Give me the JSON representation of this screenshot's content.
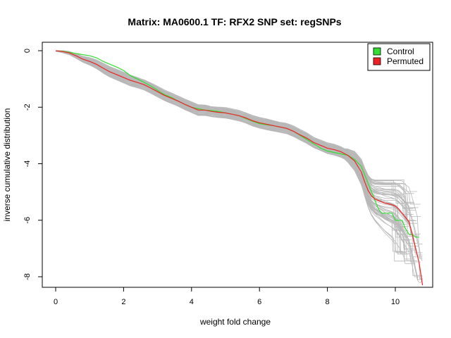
{
  "chart_data": {
    "type": "line",
    "title": "Matrix: MA0600.1 TF: RFX2 SNP set: regSNPs",
    "xlabel": "weight fold change",
    "ylabel": "inverse cumulative distribution",
    "xlim": [
      0,
      10.8
    ],
    "ylim": [
      -8,
      0
    ],
    "xticks": [
      0,
      2,
      4,
      6,
      8,
      10
    ],
    "yticks": [
      0,
      -2,
      -4,
      -6,
      -8
    ],
    "legend": {
      "position": "top-right",
      "entries": [
        {
          "label": "Control",
          "color": "#33dd33"
        },
        {
          "label": "Permuted",
          "color": "#ee2222"
        }
      ]
    },
    "series": [
      {
        "name": "Control",
        "color": "#33dd33",
        "x": [
          0.0,
          0.2,
          0.4,
          0.6,
          0.8,
          1.0,
          1.2,
          1.4,
          1.6,
          1.8,
          2.0,
          2.2,
          2.4,
          2.6,
          2.8,
          3.0,
          3.2,
          3.4,
          3.6,
          3.8,
          4.0,
          4.2,
          4.4,
          4.6,
          4.8,
          5.0,
          5.2,
          5.4,
          5.6,
          5.8,
          6.0,
          6.2,
          6.4,
          6.6,
          6.8,
          7.0,
          7.2,
          7.4,
          7.6,
          7.8,
          8.0,
          8.2,
          8.4,
          8.6,
          8.8,
          9.0,
          9.1,
          9.2,
          9.3,
          9.4,
          9.5,
          9.6,
          9.7,
          9.8,
          9.9,
          10.0,
          10.1,
          10.2,
          10.3,
          10.4,
          10.5,
          10.6,
          10.7
        ],
        "y": [
          0.0,
          -0.02,
          -0.06,
          -0.1,
          -0.14,
          -0.18,
          -0.25,
          -0.38,
          -0.48,
          -0.58,
          -0.7,
          -0.88,
          -1.0,
          -1.12,
          -1.25,
          -1.4,
          -1.55,
          -1.65,
          -1.78,
          -1.9,
          -2.0,
          -2.05,
          -2.1,
          -2.12,
          -2.15,
          -2.2,
          -2.25,
          -2.3,
          -2.4,
          -2.5,
          -2.58,
          -2.62,
          -2.65,
          -2.7,
          -2.75,
          -2.85,
          -3.0,
          -3.15,
          -3.3,
          -3.45,
          -3.55,
          -3.6,
          -3.65,
          -3.7,
          -3.85,
          -4.1,
          -4.4,
          -4.7,
          -5.0,
          -5.3,
          -5.6,
          -5.75,
          -5.75,
          -5.75,
          -5.75,
          -6.0,
          -6.0,
          -6.0,
          -6.3,
          -6.5,
          -6.5,
          -6.6,
          -6.6
        ]
      },
      {
        "name": "Permuted",
        "color": "#ee2222",
        "x": [
          0.0,
          0.2,
          0.4,
          0.6,
          0.8,
          1.0,
          1.2,
          1.4,
          1.6,
          1.8,
          2.0,
          2.2,
          2.4,
          2.6,
          2.8,
          3.0,
          3.2,
          3.4,
          3.6,
          3.8,
          4.0,
          4.2,
          4.4,
          4.6,
          4.8,
          5.0,
          5.2,
          5.4,
          5.6,
          5.8,
          6.0,
          6.2,
          6.4,
          6.6,
          6.8,
          7.0,
          7.2,
          7.4,
          7.6,
          7.8,
          8.0,
          8.2,
          8.4,
          8.6,
          8.8,
          9.0,
          9.1,
          9.2,
          9.3,
          9.4,
          9.5,
          9.6,
          9.7,
          9.8,
          9.9,
          10.0,
          10.1,
          10.2,
          10.3,
          10.4,
          10.5,
          10.6,
          10.7,
          10.8
        ],
        "y": [
          0.0,
          -0.03,
          -0.08,
          -0.18,
          -0.3,
          -0.38,
          -0.48,
          -0.62,
          -0.75,
          -0.85,
          -0.95,
          -1.05,
          -1.12,
          -1.2,
          -1.32,
          -1.45,
          -1.58,
          -1.68,
          -1.78,
          -1.9,
          -2.0,
          -2.1,
          -2.1,
          -2.15,
          -2.18,
          -2.2,
          -2.25,
          -2.3,
          -2.38,
          -2.48,
          -2.55,
          -2.6,
          -2.65,
          -2.7,
          -2.75,
          -2.85,
          -2.98,
          -3.1,
          -3.25,
          -3.35,
          -3.45,
          -3.5,
          -3.58,
          -3.7,
          -3.9,
          -4.3,
          -4.65,
          -4.95,
          -5.15,
          -5.25,
          -5.3,
          -5.35,
          -5.4,
          -5.42,
          -5.45,
          -5.5,
          -5.6,
          -5.75,
          -5.9,
          -6.05,
          -6.5,
          -7.0,
          -7.5,
          -8.3
        ]
      }
    ]
  }
}
